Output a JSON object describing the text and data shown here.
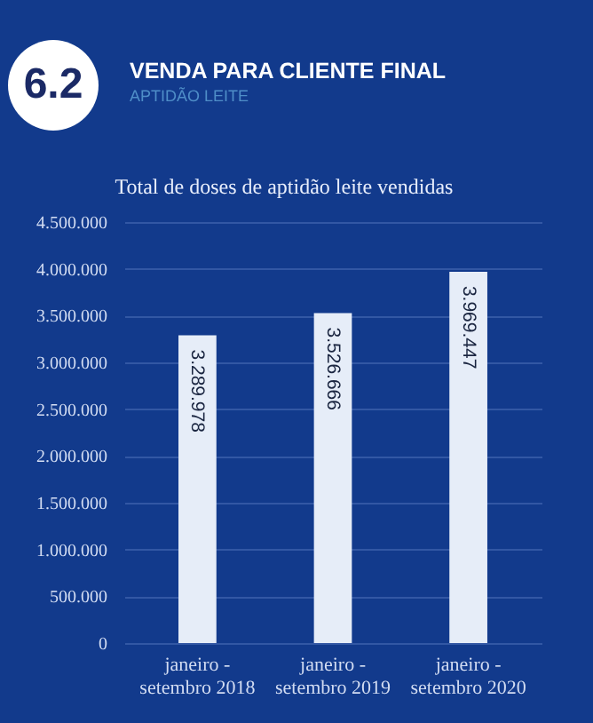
{
  "chart_data": {
    "type": "bar",
    "title": "VENDA PARA CLIENTE FINAL",
    "subtitle": "APTIDÃO LEITE",
    "annotations": [
      "6.2",
      "Total de doses de aptidão leite vendidas"
    ],
    "categories": [
      "janeiro - setembro 2018",
      "janeiro - setembro 2019",
      "janeiro - setembro 2020"
    ],
    "values": [
      3289978,
      3526666,
      3969447
    ],
    "value_labels": [
      "3.289.978",
      "3.526.666",
      "3.969.447"
    ],
    "color": "#e6edf8",
    "ylim": [
      0,
      4500000
    ],
    "yticks": [
      {
        "value": 0,
        "label": "0"
      },
      {
        "value": 500000,
        "label": "500.000"
      },
      {
        "value": 1000000,
        "label": "1.000.000"
      },
      {
        "value": 1500000,
        "label": "1.500.000"
      },
      {
        "value": 2000000,
        "label": "2.000.000"
      },
      {
        "value": 2500000,
        "label": "2.500.000"
      },
      {
        "value": 3000000,
        "label": "3.000.000"
      },
      {
        "value": 3500000,
        "label": "3.500.000"
      },
      {
        "value": 4000000,
        "label": "4.000.000"
      },
      {
        "value": 4500000,
        "label": "4.500.000"
      }
    ],
    "grid": "y"
  }
}
